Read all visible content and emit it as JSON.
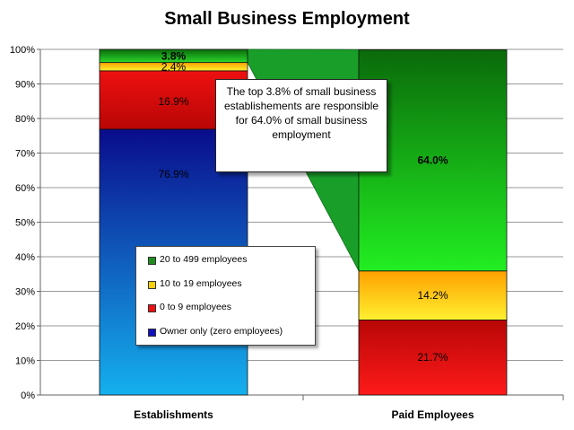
{
  "chart_data": {
    "type": "bar",
    "stacked": true,
    "title": "Small Business Employment",
    "categories": [
      "Establishments",
      "Paid Employees"
    ],
    "ylim": [
      0,
      100
    ],
    "yticks": [
      "0%",
      "10%",
      "20%",
      "30%",
      "40%",
      "50%",
      "60%",
      "70%",
      "80%",
      "90%",
      "100%"
    ],
    "grid": true,
    "legend_position": "bottom-left, inside plot",
    "bars": [
      {
        "category": "Establishments",
        "segments": [
          {
            "series": "Owner only (zero employees)",
            "value": 76.9,
            "label": "76.9%",
            "color_top": "#0a0c8c",
            "color_bottom": "#15b0ee"
          },
          {
            "series": "0 to 9 employees",
            "value": 16.9,
            "label": "16.9%",
            "color_top": "#ee1010",
            "color_bottom": "#b80606"
          },
          {
            "series": "10 to 19 employees",
            "value": 2.4,
            "label": "2.4%",
            "color_top": "#ffa000",
            "color_bottom": "#fff030"
          },
          {
            "series": "20 to 499 employees",
            "value": 3.8,
            "label": "3.8%",
            "color_top": "#0a6a0a",
            "color_bottom": "#2cd82c"
          }
        ]
      },
      {
        "category": "Paid Employees",
        "segments": [
          {
            "series": "0 to 9 employees",
            "value": 21.7,
            "label": "21.7%",
            "color_top": "#b80606",
            "color_bottom": "#ff1a1a"
          },
          {
            "series": "10 to 19 employees",
            "value": 14.2,
            "label": "14.2%",
            "color_top": "#ffa000",
            "color_bottom": "#fff030"
          },
          {
            "series": "20 to 499 employees",
            "value": 64.0,
            "label": "64.0%",
            "color_top": "#0a6a0a",
            "color_bottom": "#22ee22"
          }
        ]
      }
    ],
    "legend": [
      {
        "label": "20 to 499 employees",
        "color": "#1e8c1e"
      },
      {
        "label": "10 to 19 employees",
        "color": "#ffd000"
      },
      {
        "label": "0 to 9 employees",
        "color": "#ee1010"
      },
      {
        "label": "Owner only (zero employees)",
        "color": "#1010c0"
      }
    ],
    "annotation": "The top 3.8% of small business establishements are responsible for 64.0% of small business employment",
    "connector_color": "#1a9e2a"
  }
}
